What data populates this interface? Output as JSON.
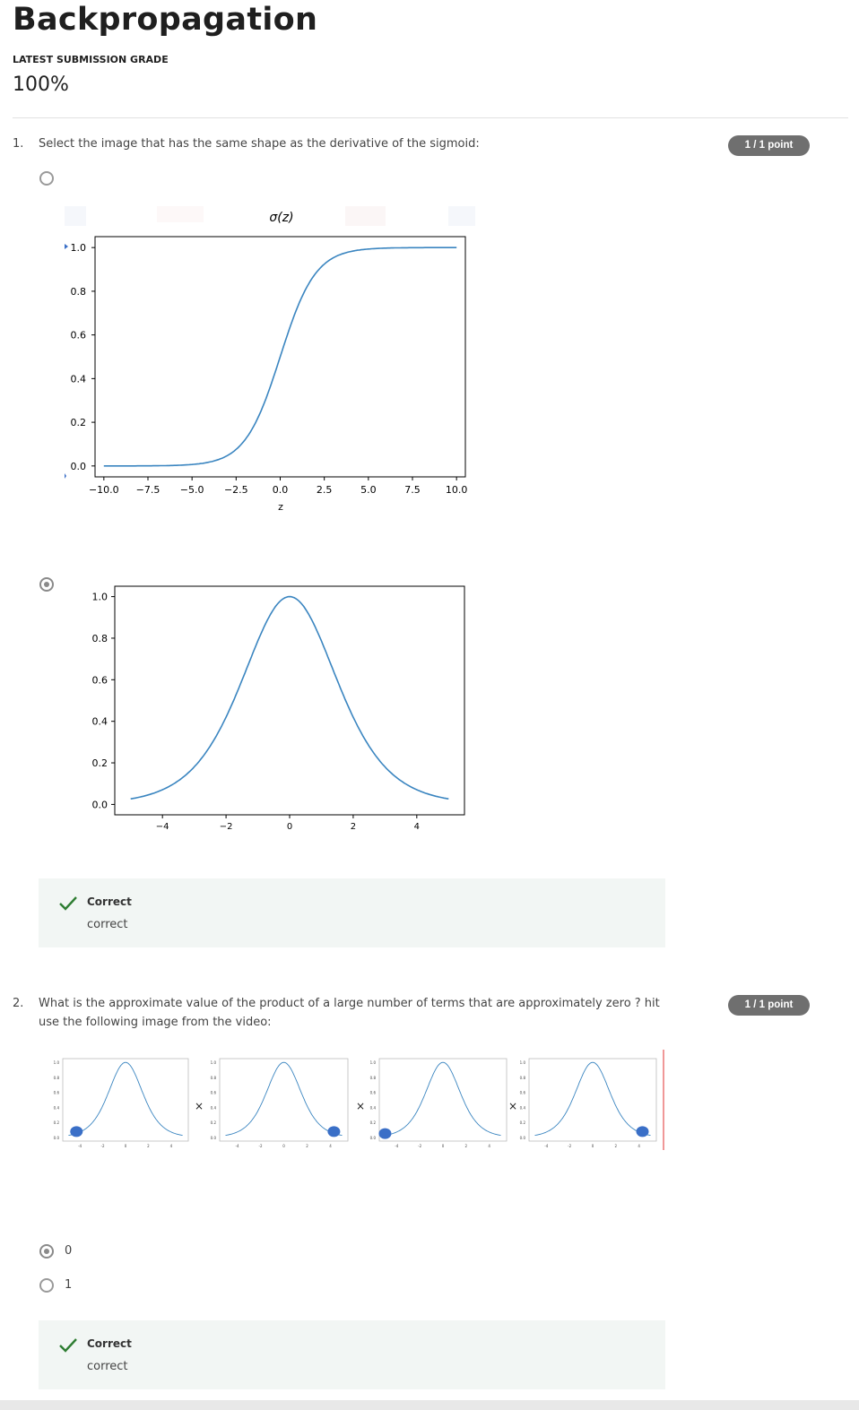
{
  "page": {
    "title": "Backpropagation",
    "grade_label": "LATEST SUBMISSION GRADE",
    "grade_value": "100%"
  },
  "q1": {
    "number": "1.",
    "text": "Select the image that has the same shape as the derivative of the sigmoid:",
    "points": "1 / 1 point",
    "options": [
      {
        "selected": false,
        "image": "sigmoid-plot"
      },
      {
        "selected": true,
        "image": "bell-curve-plot"
      }
    ],
    "feedback": {
      "title": "Correct",
      "text": "correct"
    }
  },
  "q2": {
    "number": "2.",
    "text_line1": "What is the approximate value of the product of a large number of terms that are approximately zero ? hit",
    "text_line2": "use the following image from the video:",
    "points": "1 / 1 point",
    "multiply_sign": "×",
    "options": [
      {
        "label": "0",
        "selected": true
      },
      {
        "label": "1",
        "selected": false
      }
    ],
    "feedback": {
      "title": "Correct",
      "text": "correct"
    }
  },
  "colors": {
    "curve": "#3a85c0",
    "dot": "#3a6fc7",
    "points_badge": "#6f6f6f",
    "correct_check": "#2e7d32",
    "feedback_bg": "#f2f6f4"
  },
  "chart_data": [
    {
      "type": "line",
      "title": "σ(z)",
      "xlabel": "z",
      "ylabel": "",
      "x": [
        -10,
        -8,
        -6,
        -5,
        -4,
        -3,
        -2,
        -1,
        0,
        1,
        2,
        3,
        4,
        5,
        6,
        8,
        10
      ],
      "series": [
        {
          "values": [
            4.54e-05,
            0.000335,
            0.00247,
            0.00669,
            0.018,
            0.0474,
            0.119,
            0.269,
            0.5,
            0.731,
            0.881,
            0.953,
            0.982,
            0.993,
            0.998,
            0.9997,
            1.0
          ]
        }
      ],
      "xlim": [
        -10.5,
        10.5
      ],
      "ylim": [
        -0.05,
        1.05
      ],
      "xticks": [
        "−10.0",
        "−7.5",
        "−5.0",
        "−2.5",
        "0.0",
        "2.5",
        "5.0",
        "7.5",
        "10.0"
      ],
      "yticks": [
        "0.0",
        "0.2",
        "0.4",
        "0.6",
        "0.8",
        "1.0"
      ],
      "grid": false
    },
    {
      "type": "line",
      "title": "",
      "xlabel": "",
      "ylabel": "",
      "x": [
        -5,
        -4,
        -3,
        -2,
        -1,
        0,
        1,
        2,
        3,
        4,
        5
      ],
      "series": [
        {
          "values": [
            0.027,
            0.07,
            0.17,
            0.38,
            0.72,
            1.0,
            0.72,
            0.38,
            0.17,
            0.07,
            0.027
          ]
        }
      ],
      "xlim": [
        -5.5,
        5.5
      ],
      "ylim": [
        -0.05,
        1.05
      ],
      "xticks": [
        "−4",
        "−2",
        "0",
        "2",
        "4"
      ],
      "yticks": [
        "0.0",
        "0.2",
        "0.4",
        "0.6",
        "0.8",
        "1.0"
      ],
      "grid": false
    },
    {
      "type": "line",
      "title": "",
      "note_marker_x": [
        -4.3,
        4.3,
        -5,
        4.3
      ],
      "x": [
        -5,
        -4,
        -3,
        -2,
        -1,
        0,
        1,
        2,
        3,
        4,
        5
      ],
      "series": [
        {
          "values": [
            0.027,
            0.07,
            0.17,
            0.38,
            0.72,
            1.0,
            0.72,
            0.38,
            0.17,
            0.07,
            0.027
          ]
        }
      ],
      "xticks": [
        "-4",
        "-2",
        "0",
        "2",
        "4"
      ],
      "yticks": [
        "0.0",
        "0.2",
        "0.4",
        "0.6",
        "0.8",
        "1.0"
      ]
    }
  ]
}
